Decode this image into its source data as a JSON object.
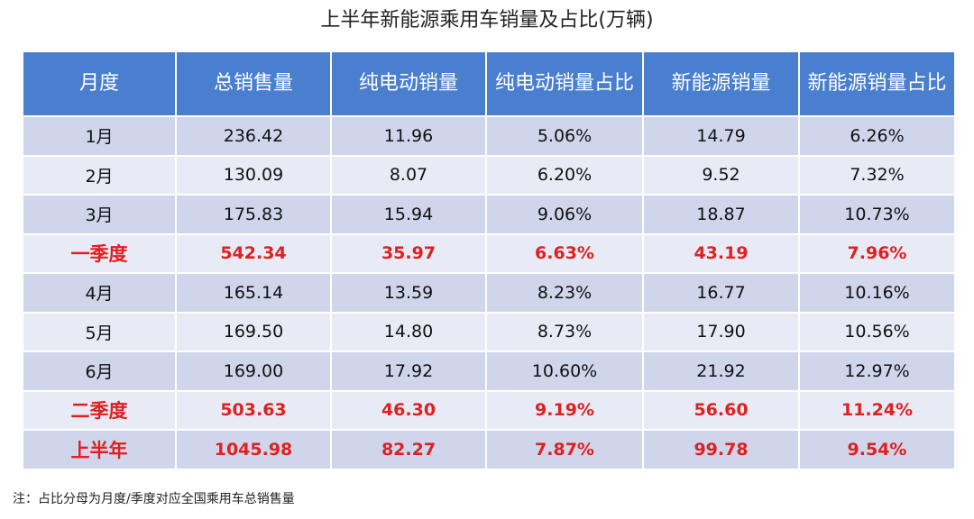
{
  "title": "上半年新能源乘用车销量及占比(万辆)",
  "headers": [
    "月度",
    "总销售量",
    "纯电动销量",
    "纯电动销量占比",
    "新能源销量",
    "新能源销量占比"
  ],
  "rows": [
    {
      "cells": [
        "1月",
        "236.42",
        "11.96",
        "5.06%",
        "14.79",
        "6.26%"
      ],
      "summary": false
    },
    {
      "cells": [
        "2月",
        "130.09",
        "8.07",
        "6.20%",
        "9.52",
        "7.32%"
      ],
      "summary": false
    },
    {
      "cells": [
        "3月",
        "175.83",
        "15.94",
        "9.06%",
        "18.87",
        "10.73%"
      ],
      "summary": false
    },
    {
      "cells": [
        "一季度",
        "542.34",
        "35.97",
        "6.63%",
        "43.19",
        "7.96%"
      ],
      "summary": true
    },
    {
      "cells": [
        "4月",
        "165.14",
        "13.59",
        "8.23%",
        "16.77",
        "10.16%"
      ],
      "summary": false
    },
    {
      "cells": [
        "5月",
        "169.50",
        "14.80",
        "8.73%",
        "17.90",
        "10.56%"
      ],
      "summary": false
    },
    {
      "cells": [
        "6月",
        "169.00",
        "17.92",
        "10.60%",
        "21.92",
        "12.97%"
      ],
      "summary": false
    },
    {
      "cells": [
        "二季度",
        "503.63",
        "46.30",
        "9.19%",
        "56.60",
        "11.24%"
      ],
      "summary": true
    },
    {
      "cells": [
        "上半年",
        "1045.98",
        "82.27",
        "7.87%",
        "99.78",
        "9.54%"
      ],
      "summary": true
    }
  ],
  "note": "注：占比分母为月度/季度对应全国乘用车总销售量",
  "colors": {
    "header_bg": "#4a7fcf",
    "row_dark": "#cfd5ea",
    "row_light": "#e8ebf5",
    "highlight_text": "#e02020"
  }
}
